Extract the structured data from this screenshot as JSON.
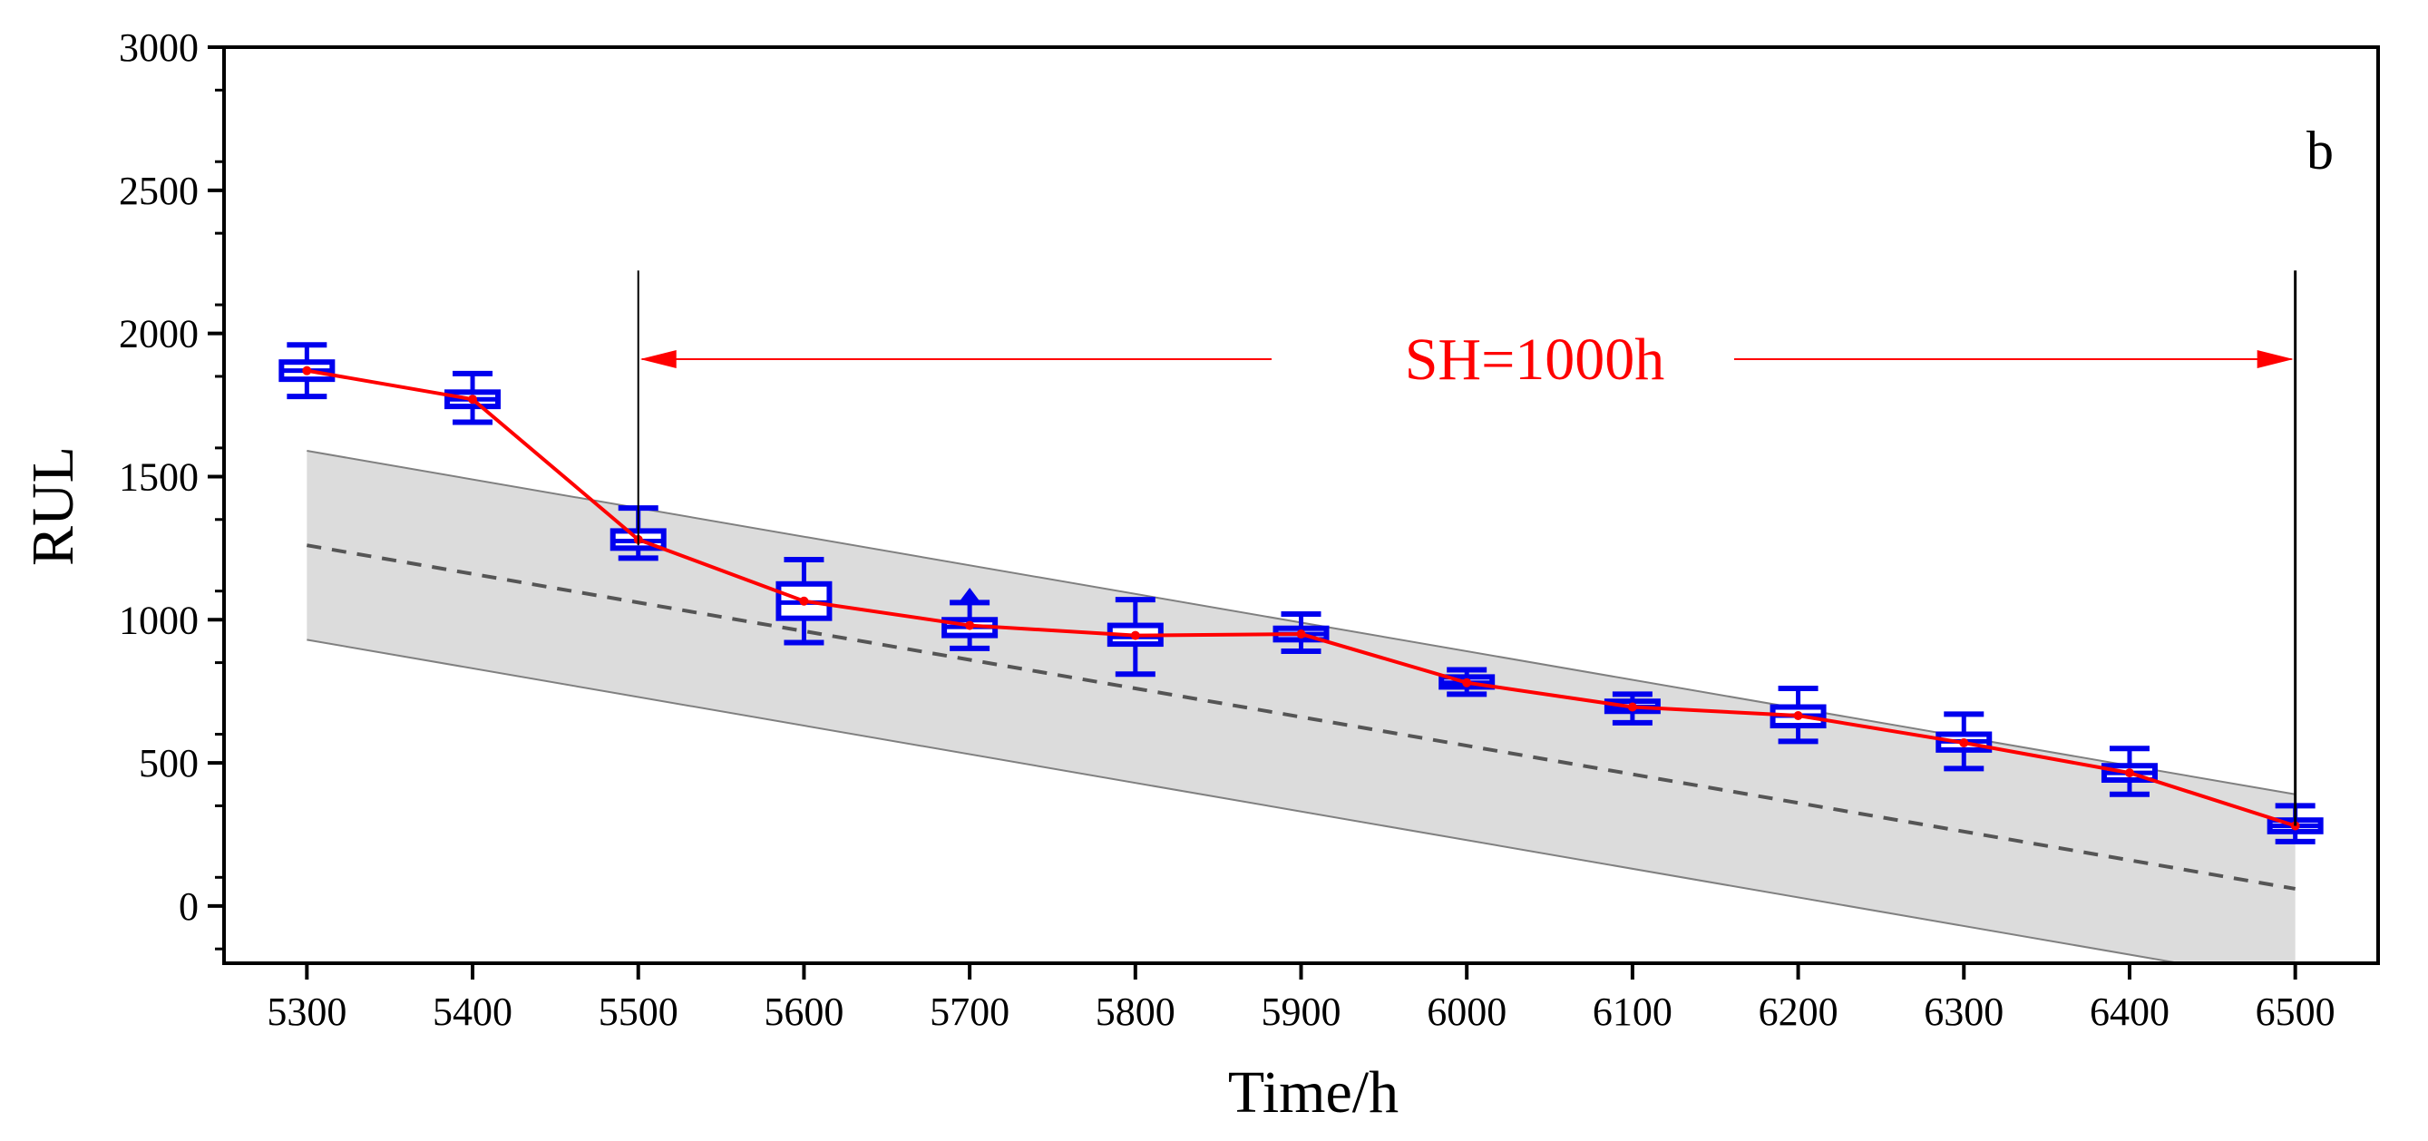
{
  "colors": {
    "band_fill": "#dcdcdc",
    "band_edge": "#808080",
    "true_line": "#555555",
    "box": "#0000ee",
    "mean_line": "#ff0000",
    "sh": "#ff0000",
    "axis": "#000000"
  },
  "chart_data": {
    "type": "box",
    "title": "",
    "panel_label": "b",
    "xlabel": "Time/h",
    "ylabel": "RUL",
    "xlim": [
      5250,
      6550
    ],
    "ylim": [
      -200,
      3000
    ],
    "x_ticks": [
      5300,
      5400,
      5500,
      5600,
      5700,
      5800,
      5900,
      6000,
      6100,
      6200,
      6300,
      6400,
      6500
    ],
    "x_tick_labels": [
      "5300",
      "5400",
      "5500",
      "5600",
      "5700",
      "5800",
      "5900",
      "6000",
      "6100",
      "6200",
      "6300",
      "6400",
      "6500"
    ],
    "y_ticks": [
      0,
      500,
      1000,
      1500,
      2000,
      2500,
      3000
    ],
    "y_tick_labels": [
      "0",
      "500",
      "1000",
      "1500",
      "2000",
      "2500",
      "3000"
    ],
    "true_rul_line": {
      "x": [
        5300,
        6500
      ],
      "y": [
        1260,
        60
      ],
      "style": "dashed"
    },
    "confidence_band": {
      "x": [
        5300,
        6500
      ],
      "upper": [
        1590,
        390
      ],
      "lower": [
        930,
        -270
      ]
    },
    "boxes": [
      {
        "x": 5300,
        "whisker_low": 1780,
        "q1": 1840,
        "median": 1870,
        "q3": 1900,
        "whisker_high": 1960,
        "mean": 1870,
        "outliers": []
      },
      {
        "x": 5400,
        "whisker_low": 1690,
        "q1": 1745,
        "median": 1770,
        "q3": 1795,
        "whisker_high": 1860,
        "mean": 1770,
        "outliers": []
      },
      {
        "x": 5500,
        "whisker_low": 1215,
        "q1": 1250,
        "median": 1275,
        "q3": 1310,
        "whisker_high": 1390,
        "mean": 1280,
        "outliers": []
      },
      {
        "x": 5600,
        "whisker_low": 920,
        "q1": 1005,
        "median": 1060,
        "q3": 1125,
        "whisker_high": 1210,
        "mean": 1065,
        "outliers": []
      },
      {
        "x": 5700,
        "whisker_low": 900,
        "q1": 945,
        "median": 975,
        "q3": 1000,
        "whisker_high": 1060,
        "mean": 980,
        "outliers": [
          1080
        ]
      },
      {
        "x": 5800,
        "whisker_low": 810,
        "q1": 915,
        "median": 940,
        "q3": 980,
        "whisker_high": 1070,
        "mean": 945,
        "outliers": []
      },
      {
        "x": 5900,
        "whisker_low": 890,
        "q1": 930,
        "median": 950,
        "q3": 970,
        "whisker_high": 1020,
        "mean": 950,
        "outliers": []
      },
      {
        "x": 6000,
        "whisker_low": 740,
        "q1": 765,
        "median": 780,
        "q3": 800,
        "whisker_high": 825,
        "mean": 780,
        "outliers": []
      },
      {
        "x": 6100,
        "whisker_low": 640,
        "q1": 680,
        "median": 695,
        "q3": 715,
        "whisker_high": 740,
        "mean": 695,
        "outliers": []
      },
      {
        "x": 6200,
        "whisker_low": 575,
        "q1": 630,
        "median": 665,
        "q3": 695,
        "whisker_high": 760,
        "mean": 665,
        "outliers": []
      },
      {
        "x": 6300,
        "whisker_low": 480,
        "q1": 545,
        "median": 575,
        "q3": 600,
        "whisker_high": 670,
        "mean": 570,
        "outliers": []
      },
      {
        "x": 6400,
        "whisker_low": 390,
        "q1": 440,
        "median": 465,
        "q3": 490,
        "whisker_high": 550,
        "mean": 465,
        "outliers": []
      },
      {
        "x": 6500,
        "whisker_low": 225,
        "q1": 260,
        "median": 280,
        "q3": 300,
        "whisker_high": 350,
        "mean": 280,
        "outliers": []
      }
    ],
    "sh_annotation": {
      "label": "SH=1000h",
      "start_x": 5500,
      "end_x": 6500,
      "arrow_y": 1910,
      "marker_top_y": 2220,
      "marker_bottom_start_y": 1260,
      "marker_bottom_end_y": 280
    }
  }
}
